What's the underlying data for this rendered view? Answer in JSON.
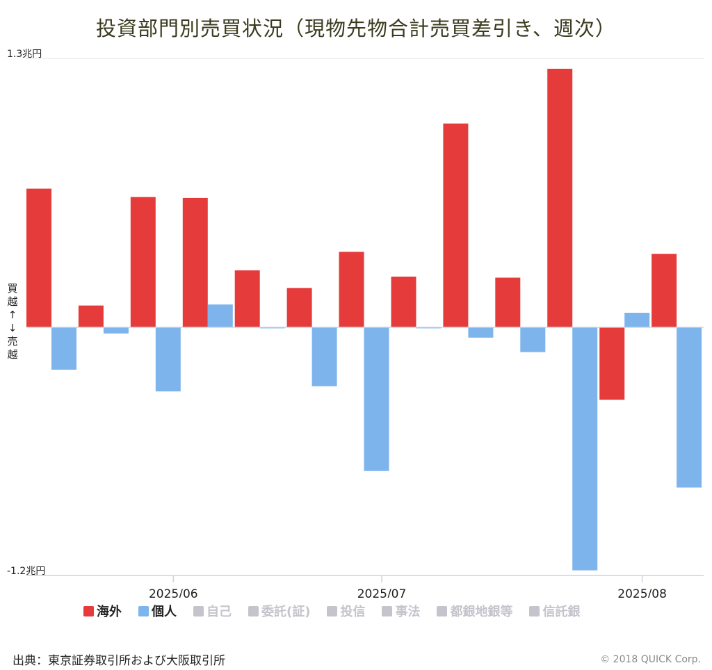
{
  "title": "投資部門別売買状況（現物先物合計売買差引き、週次）",
  "direction_label": [
    "買",
    "越",
    "↑",
    "↓",
    "売",
    "越"
  ],
  "source": "出典：東京証券取引所および大阪取引所",
  "copyright": "© 2018 QUICK Corp.",
  "colors": {
    "overseas": "#e63b3b",
    "individual": "#7eb4ec",
    "disabled": "#c4c4cc",
    "axis": "#c8d4e4"
  },
  "legend": [
    {
      "label": "海外",
      "color": "#e63b3b",
      "active": true
    },
    {
      "label": "個人",
      "color": "#7eb4ec",
      "active": true
    },
    {
      "label": "自己",
      "color": "#c4c4cc",
      "active": false
    },
    {
      "label": "委託(証)",
      "color": "#c4c4cc",
      "active": false
    },
    {
      "label": "投信",
      "color": "#c4c4cc",
      "active": false
    },
    {
      "label": "事法",
      "color": "#c4c4cc",
      "active": false
    },
    {
      "label": "都銀地銀等",
      "color": "#c4c4cc",
      "active": false
    },
    {
      "label": "信託銀",
      "color": "#c4c4cc",
      "active": false
    }
  ],
  "chart_data": {
    "type": "bar",
    "title": "投資部門別売買状況（現物先物合計売買差引き、週次）",
    "unit": "兆円",
    "ylim": [
      -1.2,
      1.3
    ],
    "y_tick_labels": [
      {
        "value": 1.3,
        "label": "1.3兆円"
      },
      {
        "value": -1.2,
        "label": "-1.2兆円"
      }
    ],
    "x_tick_labels": [
      {
        "after_week": 2,
        "label": "2025/06"
      },
      {
        "after_week": 6,
        "label": "2025/07"
      },
      {
        "after_week": 11,
        "label": "2025/08"
      }
    ],
    "week_count": 13,
    "series": [
      {
        "name": "海外",
        "color": "#e63b3b",
        "values": [
          0.67,
          0.105,
          0.63,
          0.625,
          0.275,
          0.19,
          0.365,
          0.245,
          0.985,
          0.24,
          1.25,
          -0.35,
          0.355
        ]
      },
      {
        "name": "個人",
        "color": "#7eb4ec",
        "values": [
          -0.205,
          -0.03,
          -0.31,
          0.11,
          -0.005,
          -0.285,
          -0.695,
          -0.005,
          -0.05,
          -0.12,
          -1.175,
          0.07,
          -0.775
        ]
      }
    ]
  }
}
